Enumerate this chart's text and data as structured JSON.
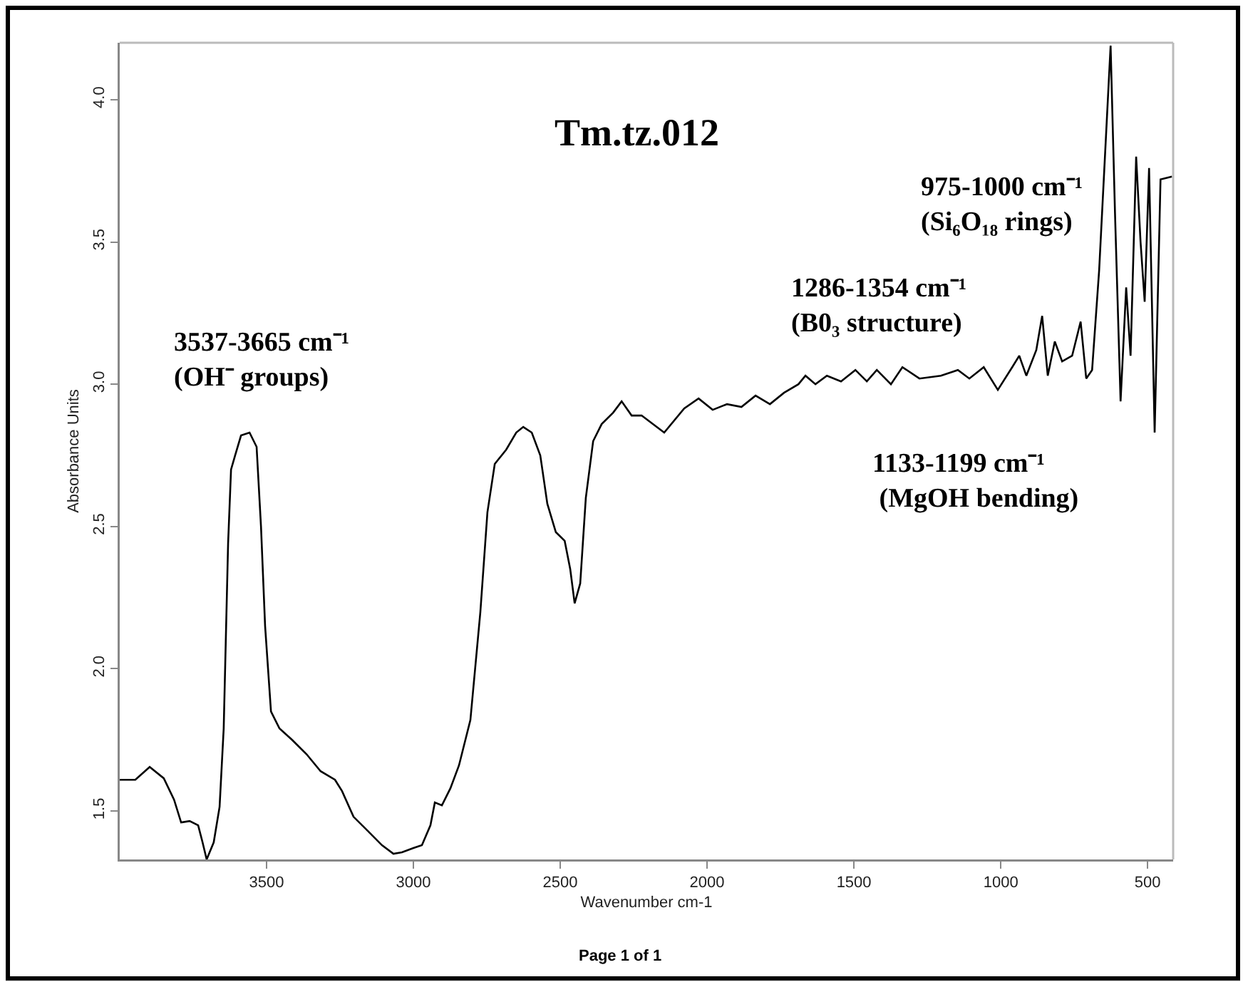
{
  "chart_data": {
    "type": "line",
    "title": "Tm.tz.012",
    "xlabel": "Wavenumber cm-1",
    "ylabel": "Absorbance Units",
    "annotations": [
      "3537-3665 cm⁻¹\n(OH⁻ groups)",
      "1286-1354 cm⁻¹\n(B0₃ structure)",
      "975-1000 cm⁻¹\n(Si₆O₁₈ rings)",
      "1133-1199 cm⁻¹\n (MgOH bending)",
      "Page 1 of 1"
    ],
    "xlim": [
      4000,
      413
    ],
    "xticks": [
      3500,
      3000,
      2500,
      2000,
      1500,
      1000,
      500
    ],
    "ylim": [
      1.33,
      4.2
    ],
    "yticks": [
      {
        "value": 1.5,
        "label": "1.5"
      },
      {
        "value": 2,
        "label": "2.0"
      },
      {
        "value": 2.5,
        "label": "2.5"
      },
      {
        "value": 3,
        "label": "3.0"
      },
      {
        "value": 3.5,
        "label": "3.5"
      },
      {
        "value": 4,
        "label": "4.0"
      }
    ],
    "marker": "none",
    "line_style": "solid",
    "series": [
      {
        "color": "#000000",
        "x": [
          4000,
          3947,
          3898,
          3850,
          3815,
          3791,
          3762,
          3733,
          3718,
          3704,
          3680,
          3660,
          3646,
          3631,
          3621,
          3607,
          3587,
          3558,
          3534,
          3519,
          3505,
          3485,
          3456,
          3413,
          3364,
          3316,
          3267,
          3243,
          3204,
          3155,
          3107,
          3068,
          3039,
          3000,
          2971,
          2942,
          2927,
          2903,
          2874,
          2845,
          2806,
          2772,
          2748,
          2723,
          2684,
          2650,
          2626,
          2597,
          2568,
          2544,
          2515,
          2485,
          2466,
          2451,
          2432,
          2413,
          2388,
          2359,
          2320,
          2291,
          2257,
          2223,
          2146,
          2078,
          2029,
          1981,
          1932,
          1883,
          1835,
          1786,
          1738,
          1689,
          1665,
          1631,
          1592,
          1544,
          1495,
          1456,
          1422,
          1374,
          1335,
          1277,
          1204,
          1146,
          1107,
          1058,
          1010,
          961,
          937,
          913,
          879,
          859,
          840,
          816,
          791,
          757,
          728,
          709,
          689,
          665,
          626,
          611,
          592,
          573,
          558,
          539,
          524,
          510,
          495,
          476,
          456,
          417
        ],
        "values": [
          1.61,
          1.61,
          1.655,
          1.615,
          1.54,
          1.46,
          1.465,
          1.45,
          1.39,
          1.33,
          1.39,
          1.515,
          1.79,
          2.44,
          2.7,
          2.75,
          2.82,
          2.83,
          2.78,
          2.5,
          2.15,
          1.85,
          1.79,
          1.75,
          1.7,
          1.64,
          1.61,
          1.57,
          1.48,
          1.43,
          1.38,
          1.35,
          1.355,
          1.37,
          1.38,
          1.45,
          1.53,
          1.52,
          1.58,
          1.66,
          1.82,
          2.2,
          2.55,
          2.72,
          2.77,
          2.83,
          2.85,
          2.83,
          2.75,
          2.58,
          2.48,
          2.45,
          2.35,
          2.23,
          2.3,
          2.6,
          2.8,
          2.86,
          2.9,
          2.94,
          2.89,
          2.89,
          2.83,
          2.915,
          2.95,
          2.91,
          2.93,
          2.92,
          2.96,
          2.93,
          2.97,
          3.0,
          3.03,
          3.0,
          3.03,
          3.01,
          3.05,
          3.01,
          3.05,
          3.0,
          3.06,
          3.02,
          3.03,
          3.05,
          3.02,
          3.06,
          2.98,
          3.06,
          3.1,
          3.03,
          3.12,
          3.24,
          3.03,
          3.15,
          3.08,
          3.1,
          3.22,
          3.02,
          3.05,
          3.4,
          4.19,
          3.6,
          2.94,
          3.34,
          3.1,
          3.8,
          3.5,
          3.29,
          3.76,
          2.83,
          3.72,
          3.73
        ]
      }
    ]
  }
}
